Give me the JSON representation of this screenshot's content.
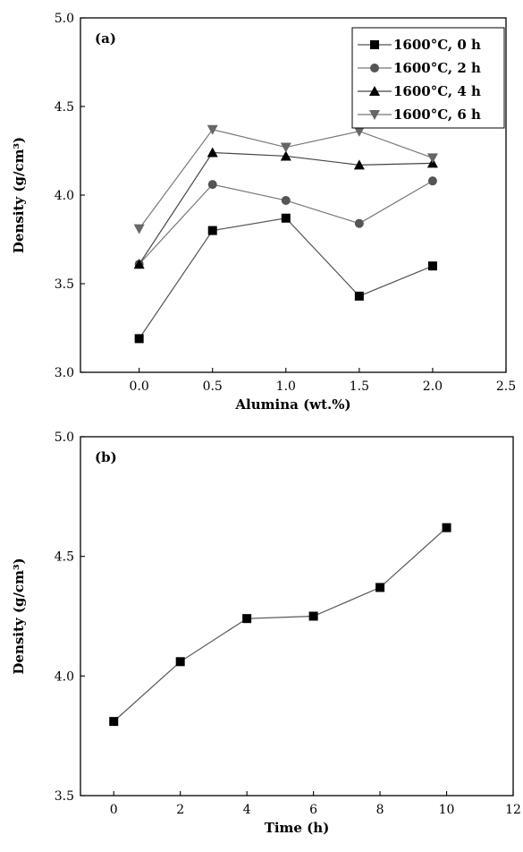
{
  "chart_data": [
    {
      "panel": "(a)",
      "type": "line",
      "xlabel": "Alumina (wt.%)",
      "ylabel": "Density (g/cm³)",
      "xlim": [
        -0.4,
        2.5
      ],
      "ylim": [
        3.0,
        5.0
      ],
      "xticks": [
        "0.0",
        "0.5",
        "1.0",
        "1.5",
        "2.0",
        "2.5"
      ],
      "yticks": [
        "3.0",
        "3.5",
        "4.0",
        "4.5",
        "5.0"
      ],
      "x": [
        0.0,
        0.5,
        1.0,
        1.5,
        2.0
      ],
      "legend": "top-right",
      "series": [
        {
          "name": "1600°C, 0 h",
          "marker": "square",
          "color": "#000000",
          "line_color": "#555555",
          "values": [
            3.19,
            3.8,
            3.87,
            3.43,
            3.6
          ]
        },
        {
          "name": "1600°C, 2 h",
          "marker": "circle",
          "color": "#555555",
          "line_color": "#777777",
          "values": [
            3.61,
            4.06,
            3.97,
            3.84,
            4.08
          ]
        },
        {
          "name": "1600°C, 4 h",
          "marker": "triangle-up",
          "color": "#000000",
          "line_color": "#444444",
          "values": [
            3.61,
            4.24,
            4.22,
            4.17,
            4.18
          ]
        },
        {
          "name": "1600°C, 6 h",
          "marker": "triangle-down",
          "color": "#666666",
          "line_color": "#777777",
          "values": [
            3.81,
            4.37,
            4.27,
            4.36,
            4.21
          ]
        }
      ]
    },
    {
      "panel": "(b)",
      "type": "line",
      "xlabel": "Time (h)",
      "ylabel": "Density (g/cm³)",
      "xlim": [
        -1,
        12
      ],
      "ylim": [
        3.5,
        5.0
      ],
      "xticks": [
        "0",
        "2",
        "4",
        "6",
        "8",
        "10",
        "12"
      ],
      "yticks": [
        "3.5",
        "4.0",
        "4.5",
        "5.0"
      ],
      "x": [
        0,
        2,
        4,
        6,
        8,
        10
      ],
      "series": [
        {
          "marker": "square",
          "color": "#000000",
          "line_color": "#555555",
          "values": [
            3.81,
            4.06,
            4.24,
            4.25,
            4.37,
            4.62
          ]
        }
      ]
    }
  ]
}
